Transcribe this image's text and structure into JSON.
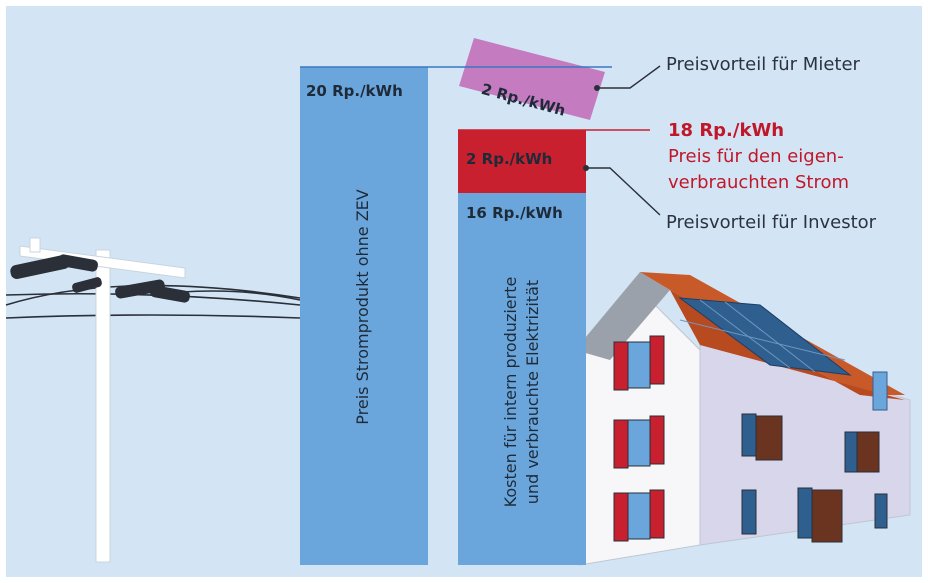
{
  "bar_left": {
    "value_label": "20 Rp./kWh",
    "caption": "Preis Stromprodukt ohne ZEV"
  },
  "bar_right": {
    "value_label": "16 Rp./kWh",
    "caption_line1": "Kosten für intern produzierte",
    "caption_line2": "und verbrauchte Elektrizität"
  },
  "red_block": {
    "value_label": "2 Rp./kWh"
  },
  "tenant_block": {
    "value_label": "2 Rp./kWh"
  },
  "annotations": {
    "tenant": "Preisvorteil für Mieter",
    "price_value": "18 Rp./kWh",
    "price_line1": "Preis für den eigen-",
    "price_line2": "verbrauchten Strom",
    "investor": "Preisvorteil für Investor"
  },
  "colors": {
    "background": "#d3e5f5",
    "bar_blue": "#6aa6dc",
    "red": "#c8202e",
    "tenant_purple": "#c47bc0",
    "text_red": "#c0172a"
  }
}
